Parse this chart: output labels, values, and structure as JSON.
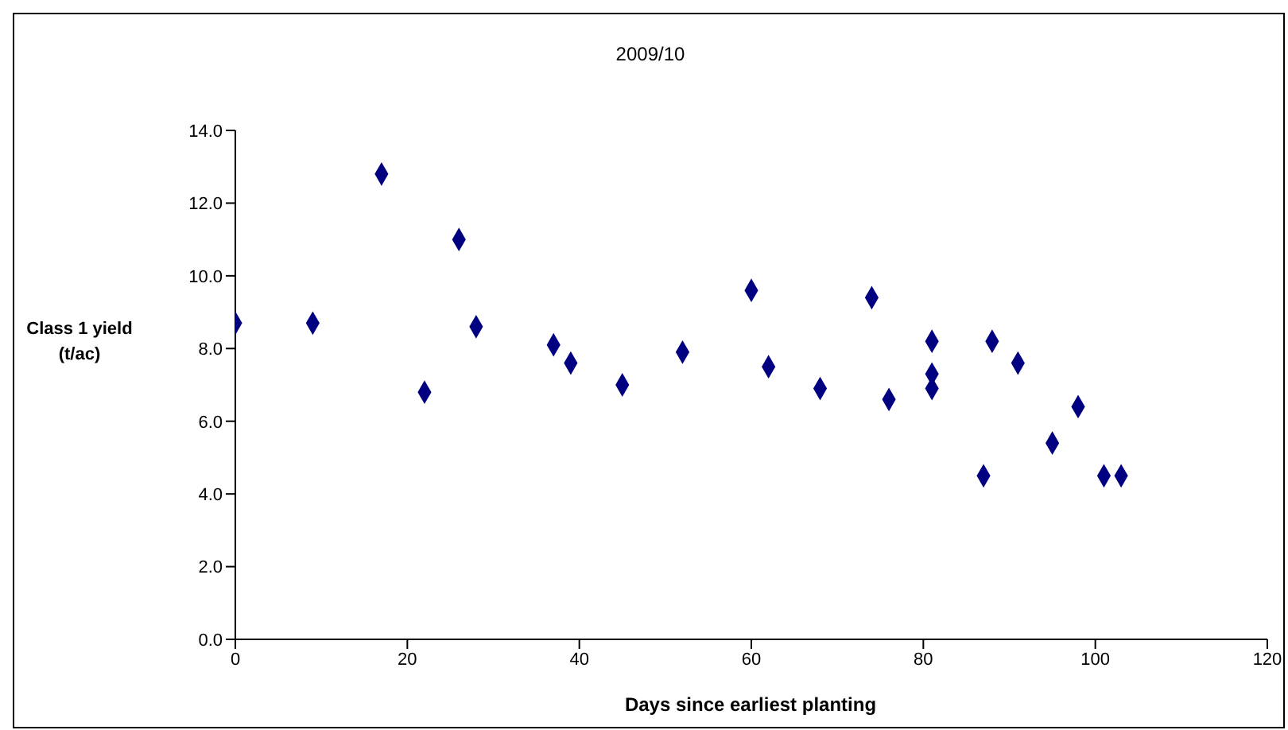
{
  "chart_data": {
    "type": "scatter",
    "title": "2009/10",
    "xlabel": "Days since earliest planting",
    "ylabel": "Class 1 yield (t/ac)",
    "x": [
      0,
      9,
      17,
      22,
      26,
      28,
      37,
      39,
      45,
      52,
      60,
      62,
      68,
      74,
      76,
      81,
      81,
      81,
      87,
      88,
      91,
      95,
      98,
      101,
      103
    ],
    "series": [
      {
        "color": "#000080",
        "values": [
          8.7,
          8.7,
          12.8,
          6.8,
          11.0,
          8.6,
          8.1,
          7.6,
          7.0,
          7.9,
          9.6,
          7.5,
          6.9,
          9.4,
          6.6,
          8.2,
          7.3,
          6.9,
          4.5,
          8.2,
          7.6,
          5.4,
          6.4,
          4.5,
          4.5
        ]
      }
    ],
    "xlim": [
      0,
      120
    ],
    "xticks": [
      0,
      20,
      40,
      60,
      80,
      100,
      120
    ],
    "ylim": [
      0,
      14
    ],
    "yticks": [
      {
        "value": 0,
        "label": "0.0"
      },
      {
        "value": 2,
        "label": "2.0"
      },
      {
        "value": 4,
        "label": "4.0"
      },
      {
        "value": 6,
        "label": "6.0"
      },
      {
        "value": 8,
        "label": "8.0"
      },
      {
        "value": 10,
        "label": "10.0"
      },
      {
        "value": 12,
        "label": "12.0"
      },
      {
        "value": 14,
        "label": "14.0"
      }
    ],
    "grid": false,
    "legend": false,
    "marker": "diamond"
  }
}
